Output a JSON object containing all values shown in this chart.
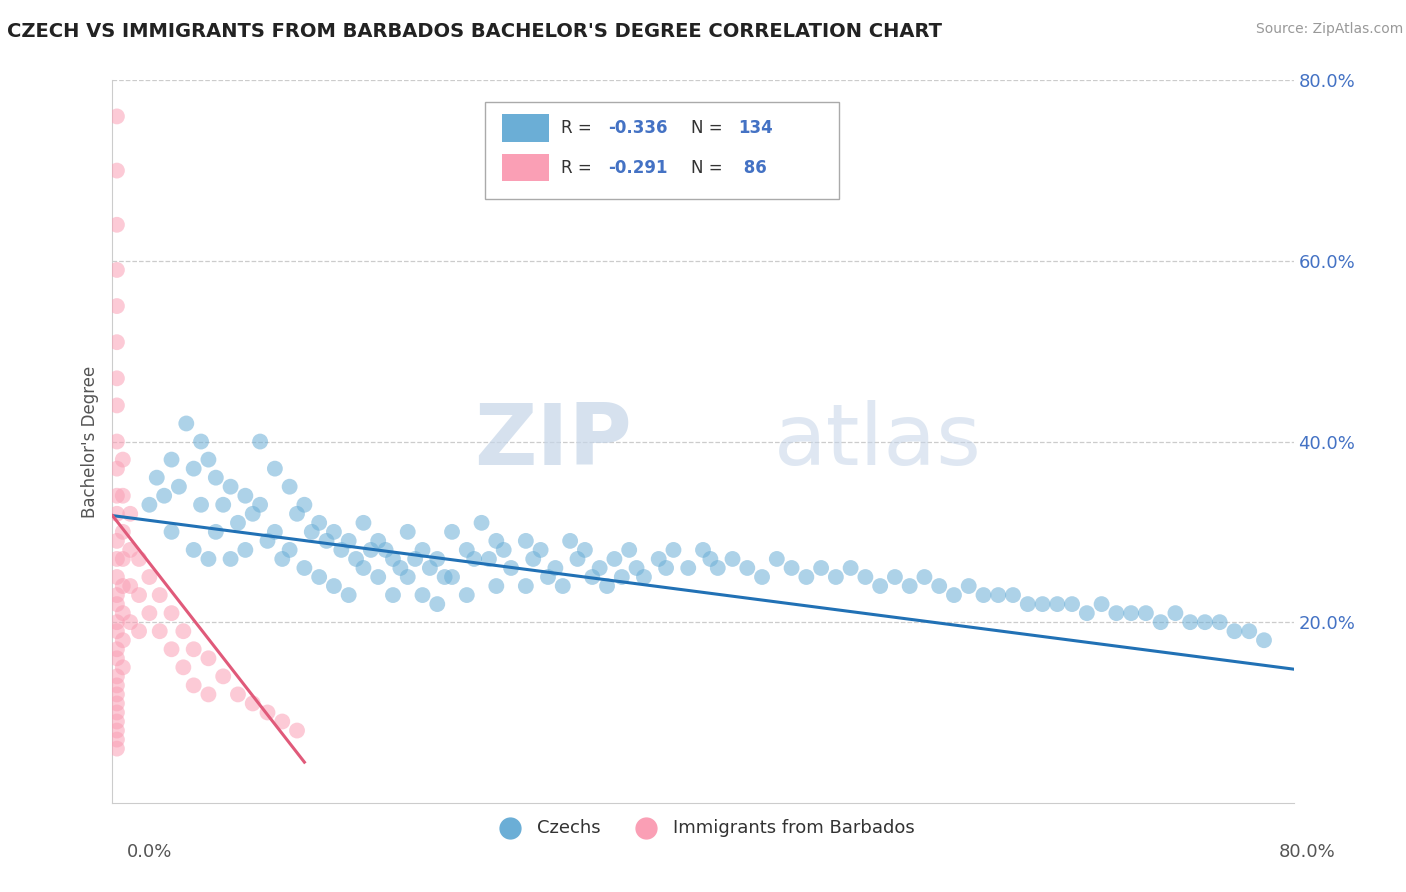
{
  "title": "CZECH VS IMMIGRANTS FROM BARBADOS BACHELOR'S DEGREE CORRELATION CHART",
  "source": "Source: ZipAtlas.com",
  "ylabel": "Bachelor's Degree",
  "xlim": [
    0.0,
    0.8
  ],
  "ylim": [
    0.0,
    0.8
  ],
  "ytick_labels": [
    "20.0%",
    "40.0%",
    "60.0%",
    "80.0%"
  ],
  "ytick_vals": [
    0.2,
    0.4,
    0.6,
    0.8
  ],
  "blue_color": "#6baed6",
  "pink_color": "#fa9fb5",
  "blue_line_color": "#2171b5",
  "pink_line_color": "#e05a7a",
  "legend_label_blue": "Czechs",
  "legend_label_pink": "Immigrants from Barbados",
  "watermark_zip": "ZIP",
  "watermark_atlas": "atlas",
  "blue_scatter_x": [
    0.025,
    0.03,
    0.035,
    0.04,
    0.04,
    0.045,
    0.05,
    0.055,
    0.055,
    0.06,
    0.06,
    0.065,
    0.065,
    0.07,
    0.07,
    0.075,
    0.08,
    0.08,
    0.085,
    0.09,
    0.09,
    0.095,
    0.1,
    0.1,
    0.105,
    0.11,
    0.11,
    0.115,
    0.12,
    0.12,
    0.125,
    0.13,
    0.13,
    0.135,
    0.14,
    0.14,
    0.145,
    0.15,
    0.15,
    0.155,
    0.16,
    0.16,
    0.165,
    0.17,
    0.17,
    0.175,
    0.18,
    0.18,
    0.185,
    0.19,
    0.19,
    0.195,
    0.2,
    0.2,
    0.205,
    0.21,
    0.21,
    0.215,
    0.22,
    0.22,
    0.225,
    0.23,
    0.23,
    0.24,
    0.24,
    0.245,
    0.25,
    0.255,
    0.26,
    0.26,
    0.265,
    0.27,
    0.28,
    0.28,
    0.285,
    0.29,
    0.295,
    0.3,
    0.305,
    0.31,
    0.315,
    0.32,
    0.325,
    0.33,
    0.335,
    0.34,
    0.345,
    0.35,
    0.355,
    0.36,
    0.37,
    0.375,
    0.38,
    0.39,
    0.4,
    0.405,
    0.41,
    0.42,
    0.43,
    0.44,
    0.45,
    0.46,
    0.47,
    0.48,
    0.49,
    0.5,
    0.51,
    0.52,
    0.53,
    0.54,
    0.55,
    0.56,
    0.57,
    0.58,
    0.59,
    0.6,
    0.61,
    0.62,
    0.63,
    0.64,
    0.65,
    0.66,
    0.67,
    0.68,
    0.69,
    0.7,
    0.71,
    0.72,
    0.73,
    0.74,
    0.75,
    0.76,
    0.77,
    0.78
  ],
  "blue_scatter_y": [
    0.33,
    0.36,
    0.34,
    0.38,
    0.3,
    0.35,
    0.42,
    0.37,
    0.28,
    0.4,
    0.33,
    0.38,
    0.27,
    0.36,
    0.3,
    0.33,
    0.35,
    0.27,
    0.31,
    0.34,
    0.28,
    0.32,
    0.4,
    0.33,
    0.29,
    0.37,
    0.3,
    0.27,
    0.35,
    0.28,
    0.32,
    0.33,
    0.26,
    0.3,
    0.31,
    0.25,
    0.29,
    0.3,
    0.24,
    0.28,
    0.29,
    0.23,
    0.27,
    0.31,
    0.26,
    0.28,
    0.29,
    0.25,
    0.28,
    0.27,
    0.23,
    0.26,
    0.3,
    0.25,
    0.27,
    0.28,
    0.23,
    0.26,
    0.27,
    0.22,
    0.25,
    0.3,
    0.25,
    0.28,
    0.23,
    0.27,
    0.31,
    0.27,
    0.29,
    0.24,
    0.28,
    0.26,
    0.29,
    0.24,
    0.27,
    0.28,
    0.25,
    0.26,
    0.24,
    0.29,
    0.27,
    0.28,
    0.25,
    0.26,
    0.24,
    0.27,
    0.25,
    0.28,
    0.26,
    0.25,
    0.27,
    0.26,
    0.28,
    0.26,
    0.28,
    0.27,
    0.26,
    0.27,
    0.26,
    0.25,
    0.27,
    0.26,
    0.25,
    0.26,
    0.25,
    0.26,
    0.25,
    0.24,
    0.25,
    0.24,
    0.25,
    0.24,
    0.23,
    0.24,
    0.23,
    0.23,
    0.23,
    0.22,
    0.22,
    0.22,
    0.22,
    0.21,
    0.22,
    0.21,
    0.21,
    0.21,
    0.2,
    0.21,
    0.2,
    0.2,
    0.2,
    0.19,
    0.19,
    0.18
  ],
  "pink_scatter_x": [
    0.003,
    0.003,
    0.003,
    0.003,
    0.003,
    0.003,
    0.003,
    0.003,
    0.003,
    0.003,
    0.003,
    0.003,
    0.003,
    0.003,
    0.003,
    0.003,
    0.003,
    0.003,
    0.003,
    0.003,
    0.003,
    0.003,
    0.003,
    0.003,
    0.003,
    0.003,
    0.003,
    0.003,
    0.003,
    0.003,
    0.007,
    0.007,
    0.007,
    0.007,
    0.007,
    0.007,
    0.007,
    0.007,
    0.012,
    0.012,
    0.012,
    0.012,
    0.018,
    0.018,
    0.018,
    0.025,
    0.025,
    0.032,
    0.032,
    0.04,
    0.04,
    0.048,
    0.048,
    0.055,
    0.055,
    0.065,
    0.065,
    0.075,
    0.085,
    0.095,
    0.105,
    0.115,
    0.125
  ],
  "pink_scatter_y": [
    0.76,
    0.7,
    0.64,
    0.59,
    0.55,
    0.51,
    0.47,
    0.44,
    0.4,
    0.37,
    0.34,
    0.32,
    0.29,
    0.27,
    0.25,
    0.23,
    0.22,
    0.2,
    0.19,
    0.17,
    0.16,
    0.14,
    0.13,
    0.12,
    0.11,
    0.1,
    0.09,
    0.08,
    0.07,
    0.06,
    0.38,
    0.34,
    0.3,
    0.27,
    0.24,
    0.21,
    0.18,
    0.15,
    0.32,
    0.28,
    0.24,
    0.2,
    0.27,
    0.23,
    0.19,
    0.25,
    0.21,
    0.23,
    0.19,
    0.21,
    0.17,
    0.19,
    0.15,
    0.17,
    0.13,
    0.16,
    0.12,
    0.14,
    0.12,
    0.11,
    0.1,
    0.09,
    0.08
  ],
  "blue_trend_x": [
    0.0,
    0.8
  ],
  "blue_trend_y": [
    0.318,
    0.148
  ],
  "pink_trend_x": [
    0.0,
    0.13
  ],
  "pink_trend_y": [
    0.318,
    0.045
  ]
}
